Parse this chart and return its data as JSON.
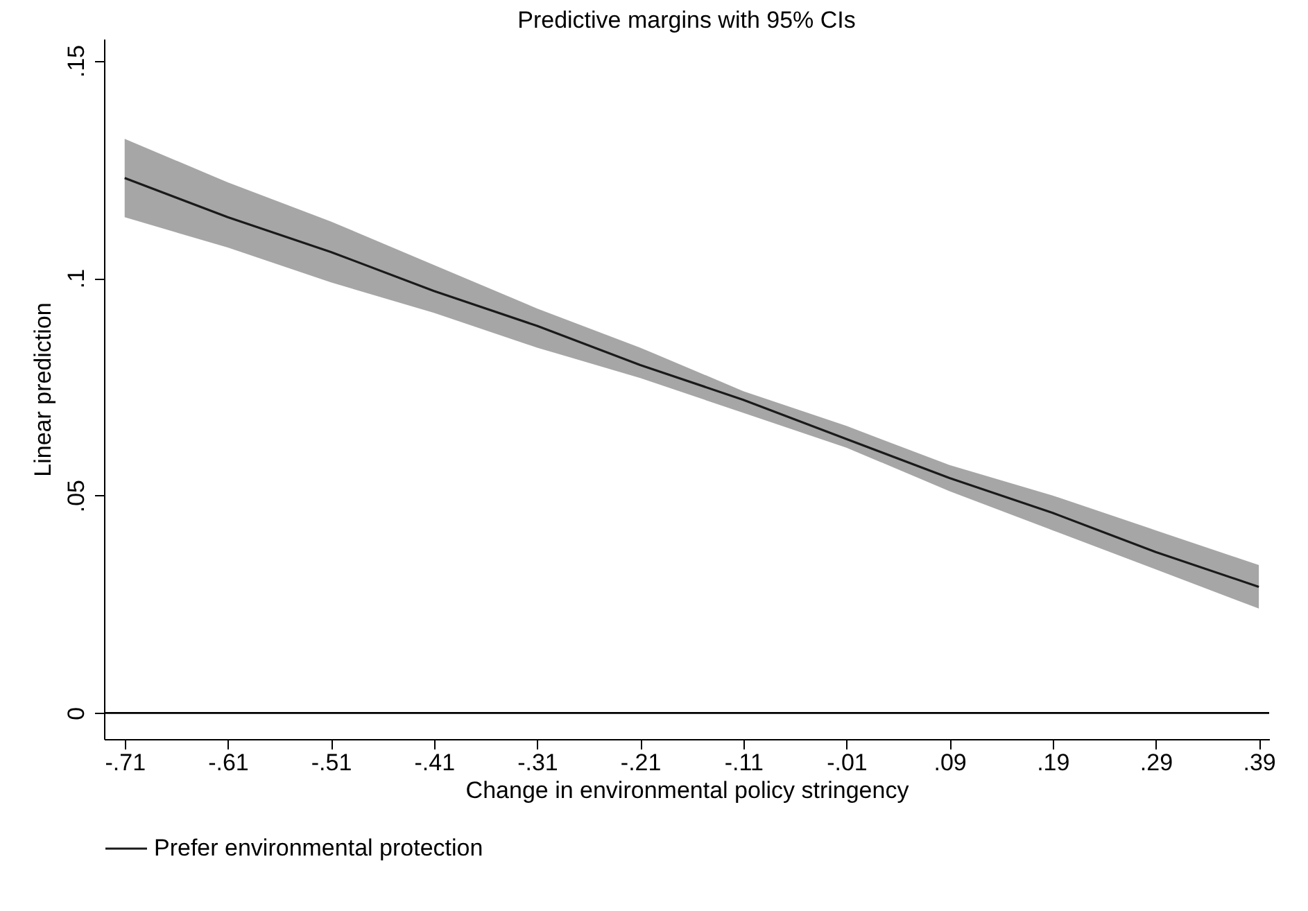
{
  "chart_data": {
    "type": "line",
    "title": "Predictive margins with 95% CIs",
    "xlabel": "Change in environmental policy stringency",
    "ylabel": "Linear prediction",
    "x": [
      -0.71,
      -0.61,
      -0.51,
      -0.41,
      -0.31,
      -0.21,
      -0.11,
      -0.01,
      0.09,
      0.19,
      0.29,
      0.39
    ],
    "series": [
      {
        "name": "Prefer environmental protection",
        "color": "#1a1a1a",
        "values": [
          0.123,
          0.114,
          0.106,
          0.097,
          0.089,
          0.08,
          0.072,
          0.063,
          0.054,
          0.046,
          0.037,
          0.029
        ],
        "lower": [
          0.114,
          0.107,
          0.099,
          0.092,
          0.084,
          0.077,
          0.069,
          0.061,
          0.051,
          0.042,
          0.033,
          0.024
        ],
        "upper": [
          0.132,
          0.122,
          0.113,
          0.103,
          0.093,
          0.084,
          0.074,
          0.066,
          0.057,
          0.05,
          0.042,
          0.034
        ]
      }
    ],
    "xlim": [
      -0.73,
      0.4
    ],
    "xticks": [
      {
        "value": -0.71,
        "label": "-.71"
      },
      {
        "value": -0.61,
        "label": "-.61"
      },
      {
        "value": -0.51,
        "label": "-.51"
      },
      {
        "value": -0.41,
        "label": "-.41"
      },
      {
        "value": -0.31,
        "label": "-.31"
      },
      {
        "value": -0.21,
        "label": "-.21"
      },
      {
        "value": -0.11,
        "label": "-.11"
      },
      {
        "value": -0.01,
        "label": "-.01"
      },
      {
        "value": 0.09,
        "label": ".09"
      },
      {
        "value": 0.19,
        "label": ".19"
      },
      {
        "value": 0.29,
        "label": ".29"
      },
      {
        "value": 0.39,
        "label": ".39"
      }
    ],
    "ylim": [
      -0.006,
      0.155
    ],
    "yticks": [
      0,
      {
        "value": 0.05,
        "label": ".05"
      },
      {
        "value": 0.1,
        "label": ".1"
      },
      {
        "value": 0.15,
        "label": ".15"
      }
    ],
    "ref_lines": [
      {
        "axis": "y",
        "value": 0,
        "color": "#000000"
      }
    ],
    "legend": "bottom",
    "line_style": "solid"
  }
}
